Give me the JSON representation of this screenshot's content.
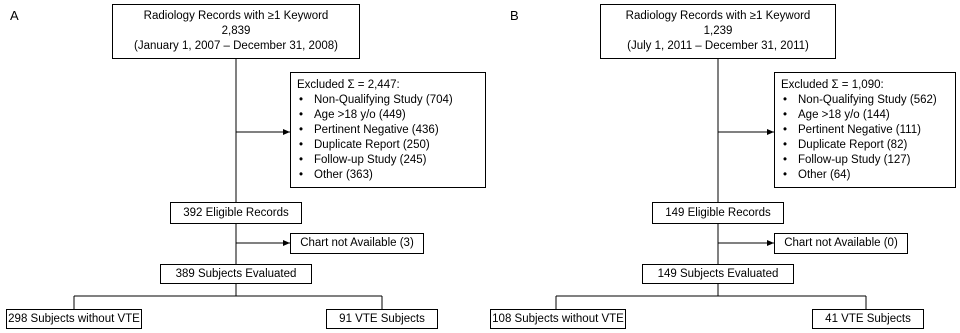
{
  "panels": [
    {
      "label": "A",
      "top_box": {
        "title": "Radiology Records with ≥1 Keyword",
        "count": "2,839",
        "range": "(January 1, 2007 – December 31, 2008)"
      },
      "excluded": {
        "title": "Excluded Σ = 2,447:",
        "items": [
          "Non-Qualifying Study (704)",
          "Age >18 y/o (449)",
          "Pertinent Negative (436)",
          "Duplicate Report (250)",
          "Follow-up Study (245)",
          "Other (363)"
        ]
      },
      "eligible": "392 Eligible Records",
      "chart_na": "Chart not Available (3)",
      "evaluated": "389 Subjects Evaluated",
      "without_vte": "298 Subjects without VTE",
      "vte": "91 VTE Subjects"
    },
    {
      "label": "B",
      "top_box": {
        "title": "Radiology Records with ≥1 Keyword",
        "count": "1,239",
        "range": "(July 1, 2011 – December 31, 2011)"
      },
      "excluded": {
        "title": "Excluded Σ = 1,090:",
        "items": [
          "Non-Qualifying Study (562)",
          "Age >18 y/o (144)",
          "Pertinent Negative (111)",
          "Duplicate Report (82)",
          "Follow-up Study (127)",
          "Other (64)"
        ]
      },
      "eligible": "149 Eligible Records",
      "chart_na": "Chart not Available (0)",
      "evaluated": "149 Subjects Evaluated",
      "without_vte": "108 Subjects without VTE",
      "vte": "41 VTE Subjects"
    }
  ]
}
